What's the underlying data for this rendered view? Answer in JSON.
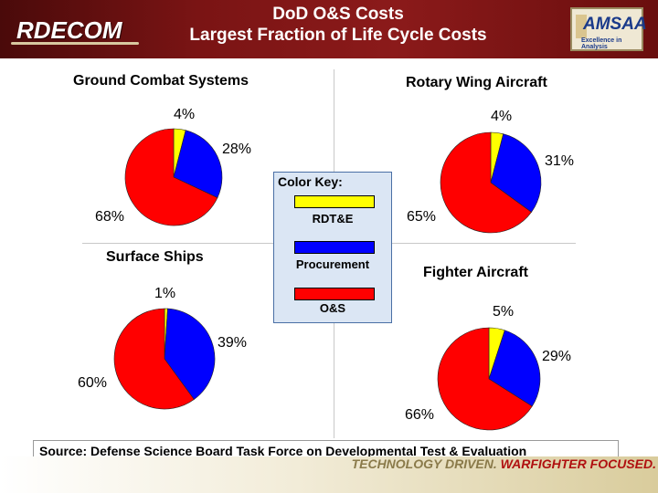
{
  "header": {
    "logo_text": "RDECOM",
    "title_line1": "DoD O&S Costs",
    "title_line2": "Largest Fraction of Life Cycle Costs",
    "amsaa_logo_text": "AMSAA",
    "amsaa_logo_sub": "Excellence in Analysis"
  },
  "colors": {
    "rdte": "#ffff00",
    "procurement": "#0000ff",
    "os": "#ff0000",
    "header_bg": "#7a1414"
  },
  "chart_data": [
    {
      "type": "pie",
      "title": "Ground Combat Systems",
      "categories": [
        "RDT&E",
        "Procurement",
        "O&S"
      ],
      "values": [
        4,
        28,
        68
      ],
      "labels": [
        "4%",
        "28%",
        "68%"
      ]
    },
    {
      "type": "pie",
      "title": "Rotary Wing Aircraft",
      "categories": [
        "RDT&E",
        "Procurement",
        "O&S"
      ],
      "values": [
        4,
        31,
        65
      ],
      "labels": [
        "4%",
        "31%",
        "65%"
      ]
    },
    {
      "type": "pie",
      "title": "Surface Ships",
      "categories": [
        "RDT&E",
        "Procurement",
        "O&S"
      ],
      "values": [
        1,
        39,
        60
      ],
      "labels": [
        "1%",
        "39%",
        "60%"
      ]
    },
    {
      "type": "pie",
      "title": "Fighter Aircraft",
      "categories": [
        "RDT&E",
        "Procurement",
        "O&S"
      ],
      "values": [
        5,
        29,
        66
      ],
      "labels": [
        "5%",
        "29%",
        "66%"
      ]
    }
  ],
  "color_key": {
    "title": "Color Key:",
    "items": [
      "RDT&E",
      "Procurement",
      "O&S"
    ]
  },
  "source": "Source: Defense Science Board Task Force on Developmental Test & Evaluation",
  "footer": {
    "tagline_part1": "TECHNOLOGY DRIVEN.",
    "tagline_part2": "WARFIGHTER FOCUSED."
  }
}
